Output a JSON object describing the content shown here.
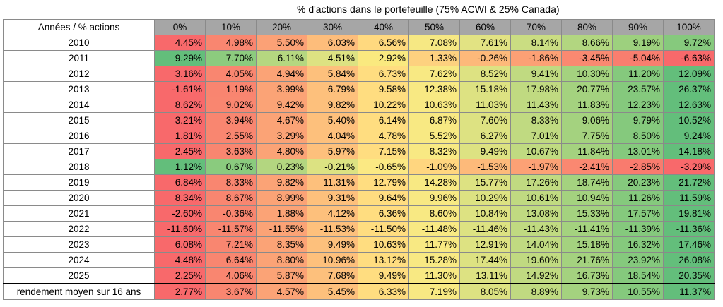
{
  "title": "% d'actions dans le portefeuille (75% ACWI & 25% Canada)",
  "corner_label": "Années / % actions",
  "columns": [
    "0%",
    "10%",
    "20%",
    "30%",
    "40%",
    "50%",
    "60%",
    "70%",
    "80%",
    "90%",
    "100%"
  ],
  "rows": [
    {
      "label": "2010",
      "values": [
        "4.45%",
        "4.98%",
        "5.50%",
        "6.03%",
        "6.56%",
        "7.08%",
        "7.61%",
        "8.14%",
        "8.66%",
        "9.19%",
        "9.72%"
      ],
      "colors": [
        "#f8696b",
        "#f98670",
        "#fba176",
        "#fdbd7b",
        "#ffd97f",
        "#f6e883",
        "#e2e383",
        "#cadd82",
        "#b2d680",
        "#9dd07e",
        "#86c97d"
      ]
    },
    {
      "label": "2011",
      "values": [
        "9.29%",
        "7.70%",
        "6.11%",
        "4.51%",
        "2.92%",
        "1.33%",
        "-0.26%",
        "-1.86%",
        "-3.45%",
        "-5.04%",
        "-6.63%"
      ],
      "colors": [
        "#63be7b",
        "#8ccb7e",
        "#b5d780",
        "#dde282",
        "#fae97f",
        "#fdd17f",
        "#fdb97a",
        "#fca075",
        "#fa8971",
        "#f97e6f",
        "#f8696b"
      ]
    },
    {
      "label": "2012",
      "values": [
        "3.16%",
        "4.05%",
        "4.94%",
        "5.84%",
        "6.73%",
        "7.62%",
        "8.52%",
        "9.41%",
        "10.30%",
        "11.20%",
        "12.09%"
      ],
      "colors": [
        "#f8696b",
        "#f98670",
        "#fba376",
        "#fdc07c",
        "#ffdd80",
        "#f8e983",
        "#dde282",
        "#c0da81",
        "#a4d27f",
        "#85c97d",
        "#63be7b"
      ]
    },
    {
      "label": "2013",
      "values": [
        "-1.61%",
        "1.19%",
        "3.99%",
        "6.79%",
        "9.58%",
        "12.38%",
        "15.18%",
        "17.98%",
        "20.77%",
        "23.57%",
        "26.37%"
      ],
      "colors": [
        "#f8696b",
        "#f98570",
        "#fba376",
        "#fdc07c",
        "#ffdd80",
        "#f8e983",
        "#dde282",
        "#c0da81",
        "#a4d27f",
        "#85c97d",
        "#63be7b"
      ]
    },
    {
      "label": "2014",
      "values": [
        "8.62%",
        "9.02%",
        "9.42%",
        "9.82%",
        "10.22%",
        "10.63%",
        "11.03%",
        "11.43%",
        "11.83%",
        "12.23%",
        "12.63%"
      ],
      "colors": [
        "#f8696b",
        "#f98670",
        "#fba376",
        "#fdc07c",
        "#ffdd80",
        "#f8e983",
        "#dde282",
        "#c0da81",
        "#a4d27f",
        "#85c97d",
        "#63be7b"
      ]
    },
    {
      "label": "2015",
      "values": [
        "3.21%",
        "3.94%",
        "4.67%",
        "5.40%",
        "6.14%",
        "6.87%",
        "7.60%",
        "8.33%",
        "9.06%",
        "9.79%",
        "10.52%"
      ],
      "colors": [
        "#f8696b",
        "#f98670",
        "#fba376",
        "#fdc07c",
        "#ffdd80",
        "#f8e983",
        "#dde282",
        "#c0da81",
        "#a4d27f",
        "#85c97d",
        "#63be7b"
      ]
    },
    {
      "label": "2016",
      "values": [
        "1.81%",
        "2.55%",
        "3.29%",
        "4.04%",
        "4.78%",
        "5.52%",
        "6.27%",
        "7.01%",
        "7.75%",
        "8.50%",
        "9.24%"
      ],
      "colors": [
        "#f8696b",
        "#f98670",
        "#fba376",
        "#fdc07c",
        "#ffdd80",
        "#f8e983",
        "#dde282",
        "#c0da81",
        "#a4d27f",
        "#85c97d",
        "#63be7b"
      ]
    },
    {
      "label": "2017",
      "values": [
        "2.45%",
        "3.63%",
        "4.80%",
        "5.97%",
        "7.15%",
        "8.32%",
        "9.49%",
        "10.67%",
        "11.84%",
        "13.01%",
        "14.18%"
      ],
      "colors": [
        "#f8696b",
        "#f98670",
        "#fba376",
        "#fdc07c",
        "#ffdd80",
        "#f8e983",
        "#dde282",
        "#c0da81",
        "#a4d27f",
        "#85c97d",
        "#63be7b"
      ]
    },
    {
      "label": "2018",
      "values": [
        "1.12%",
        "0.67%",
        "0.23%",
        "-0.21%",
        "-0.65%",
        "-1.09%",
        "-1.53%",
        "-1.97%",
        "-2.41%",
        "-2.85%",
        "-3.29%"
      ],
      "colors": [
        "#63be7b",
        "#8acb7e",
        "#b3d680",
        "#dce282",
        "#fbe983",
        "#ffd67f",
        "#fdba7a",
        "#fca175",
        "#fa8871",
        "#f97b6e",
        "#f8696b"
      ]
    },
    {
      "label": "2019",
      "values": [
        "6.84%",
        "8.33%",
        "9.82%",
        "11.31%",
        "12.79%",
        "14.28%",
        "15.77%",
        "17.26%",
        "18.74%",
        "20.23%",
        "21.72%"
      ],
      "colors": [
        "#f8696b",
        "#f98670",
        "#fba376",
        "#fdc07c",
        "#ffdd80",
        "#f8e983",
        "#dde282",
        "#c0da81",
        "#a4d27f",
        "#85c97d",
        "#63be7b"
      ]
    },
    {
      "label": "2020",
      "values": [
        "8.34%",
        "8.67%",
        "8.99%",
        "9.31%",
        "9.64%",
        "9.96%",
        "10.29%",
        "10.61%",
        "10.94%",
        "11.26%",
        "11.59%"
      ],
      "colors": [
        "#f8696b",
        "#f98670",
        "#fba376",
        "#fdc07c",
        "#ffdd80",
        "#f8e983",
        "#dde282",
        "#c0da81",
        "#a4d27f",
        "#85c97d",
        "#63be7b"
      ]
    },
    {
      "label": "2021",
      "values": [
        "-2.60%",
        "-0.36%",
        "1.88%",
        "4.12%",
        "6.36%",
        "8.60%",
        "10.84%",
        "13.08%",
        "15.33%",
        "17.57%",
        "19.81%"
      ],
      "colors": [
        "#f8696b",
        "#f98670",
        "#fba376",
        "#fdc07c",
        "#ffdd80",
        "#f8e983",
        "#dde282",
        "#c0da81",
        "#a4d27f",
        "#85c97d",
        "#63be7b"
      ]
    },
    {
      "label": "2022",
      "values": [
        "-11.60%",
        "-11.57%",
        "-11.55%",
        "-11.53%",
        "-11.50%",
        "-11.48%",
        "-11.46%",
        "-11.43%",
        "-11.41%",
        "-11.39%",
        "-11.36%"
      ],
      "colors": [
        "#f8696b",
        "#f98670",
        "#fba376",
        "#fdc07c",
        "#ffdd80",
        "#f8e983",
        "#dde282",
        "#c0da81",
        "#a4d27f",
        "#85c97d",
        "#63be7b"
      ]
    },
    {
      "label": "2023",
      "values": [
        "6.08%",
        "7.21%",
        "8.35%",
        "9.49%",
        "10.63%",
        "11.77%",
        "12.91%",
        "14.04%",
        "15.18%",
        "16.32%",
        "17.46%"
      ],
      "colors": [
        "#f8696b",
        "#f98670",
        "#fba376",
        "#fdc07c",
        "#ffdd80",
        "#f8e983",
        "#dde282",
        "#c0da81",
        "#a4d27f",
        "#85c97d",
        "#63be7b"
      ]
    },
    {
      "label": "2024",
      "values": [
        "4.48%",
        "6.64%",
        "8.80%",
        "10.96%",
        "13.12%",
        "15.28%",
        "17.44%",
        "19.60%",
        "21.76%",
        "23.92%",
        "26.08%"
      ],
      "colors": [
        "#f8696b",
        "#f98670",
        "#fba376",
        "#fdc07c",
        "#ffdd80",
        "#f8e983",
        "#dde282",
        "#c0da81",
        "#a4d27f",
        "#85c97d",
        "#63be7b"
      ]
    },
    {
      "label": "2025",
      "values": [
        "2.25%",
        "4.06%",
        "5.87%",
        "7.68%",
        "9.49%",
        "11.30%",
        "13.11%",
        "14.92%",
        "16.73%",
        "18.54%",
        "20.35%"
      ],
      "colors": [
        "#f8696b",
        "#f98670",
        "#fba376",
        "#fdc07c",
        "#ffdd80",
        "#f8e983",
        "#dde282",
        "#c0da81",
        "#a4d27f",
        "#85c97d",
        "#63be7b"
      ]
    }
  ],
  "average_row": {
    "label": "rendement moyen sur 16 ans",
    "values": [
      "2.77%",
      "3.67%",
      "4.57%",
      "5.45%",
      "6.33%",
      "7.19%",
      "8.05%",
      "8.89%",
      "9.73%",
      "10.55%",
      "11.37%"
    ],
    "colors": [
      "#f8696b",
      "#f98670",
      "#fba376",
      "#fdc07c",
      "#ffdd80",
      "#f8e983",
      "#dde282",
      "#c0da81",
      "#a4d27f",
      "#85c97d",
      "#63be7b"
    ]
  }
}
